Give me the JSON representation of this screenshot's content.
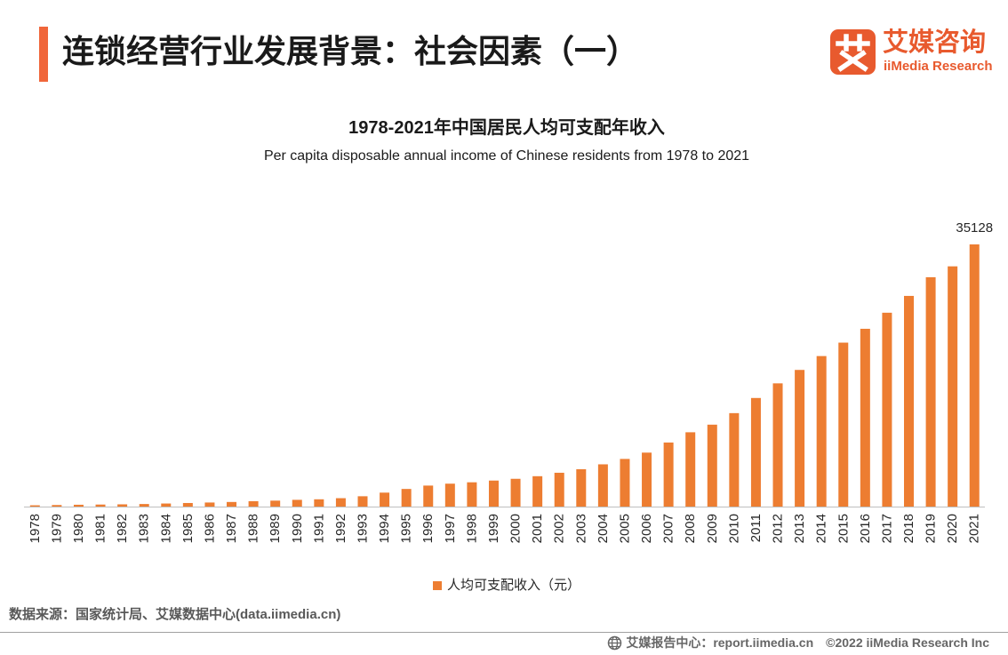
{
  "header": {
    "title": "连锁经营行业发展背景：社会因素（一）"
  },
  "logo": {
    "icon_glyph": "艾",
    "name_cn": "艾媒咨询",
    "name_en": "iiMedia Research"
  },
  "chart_data": {
    "type": "bar",
    "title": "1978-2021年中国居民人均可支配年收入",
    "subtitle": "Per capita disposable annual income of Chinese residents from 1978 to 2021",
    "xlabel": "",
    "ylabel": "",
    "grid": false,
    "legend_position": "bottom",
    "categories": [
      "1978",
      "1979",
      "1980",
      "1981",
      "1982",
      "1983",
      "1984",
      "1985",
      "1986",
      "1987",
      "1988",
      "1989",
      "1990",
      "1991",
      "1992",
      "1993",
      "1994",
      "1995",
      "1996",
      "1997",
      "1998",
      "1999",
      "2000",
      "2001",
      "2002",
      "2003",
      "2004",
      "2005",
      "2006",
      "2007",
      "2008",
      "2009",
      "2010",
      "2011",
      "2012",
      "2013",
      "2014",
      "2015",
      "2016",
      "2017",
      "2018",
      "2019",
      "2020",
      "2021"
    ],
    "series": [
      {
        "name": "人均可支配收入（元）",
        "color": "#ED7D31",
        "values": [
          171,
          208,
          247,
          273,
          301,
          343,
          411,
          479,
          545,
          616,
          724,
          796,
          904,
          976,
          1125,
          1385,
          1870,
          2363,
          2814,
          3070,
          3254,
          3485,
          3721,
          4070,
          4532,
          5007,
          5661,
          6385,
          7229,
          8584,
          9956,
          10977,
          12520,
          14551,
          16510,
          18311,
          20167,
          21966,
          23821,
          25974,
          28228,
          30733,
          32189,
          35128
        ]
      }
    ],
    "data_labels": [
      {
        "category": "2021",
        "text": "35128"
      }
    ]
  },
  "source": "数据来源：国家统计局、艾媒数据中心(data.iimedia.cn)",
  "footer": {
    "icon": "globe-icon",
    "site": "艾媒报告中心：report.iimedia.cn",
    "copyright": "©2022 iiMedia Research Inc"
  },
  "colors": {
    "accent": "#F0663A",
    "brand": "#E85A2E",
    "bar": "#ED7D31",
    "muted": "#595959"
  }
}
